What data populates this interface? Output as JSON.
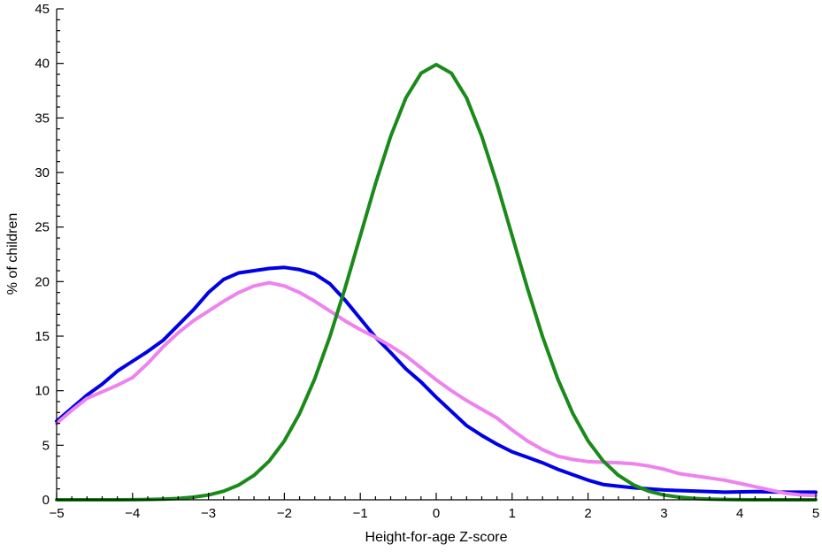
{
  "chart_data": {
    "type": "line",
    "title": "",
    "xlabel": "Height-for-age Z-score",
    "ylabel": "% of children",
    "xlim": [
      -5,
      5
    ],
    "ylim": [
      0,
      45
    ],
    "x_ticks": [
      -5,
      -4,
      -3,
      -2,
      -1,
      0,
      1,
      2,
      3,
      4,
      5
    ],
    "y_ticks": [
      0,
      5,
      10,
      15,
      20,
      25,
      30,
      35,
      40,
      45
    ],
    "x_tick_labels": [
      "−5",
      "−4",
      "−3",
      "−2",
      "−1",
      "0",
      "1",
      "2",
      "3",
      "4",
      "5"
    ],
    "y_tick_labels": [
      "0",
      "5",
      "10",
      "15",
      "20",
      "25",
      "30",
      "35",
      "40",
      "45"
    ],
    "grid": false,
    "legend": "none",
    "series": [
      {
        "color": "#0000e6",
        "points": [
          [
            -5,
            7.2
          ],
          [
            -4.8,
            8.4
          ],
          [
            -4.6,
            9.6
          ],
          [
            -4.4,
            10.6
          ],
          [
            -4.2,
            11.8
          ],
          [
            -4,
            12.7
          ],
          [
            -3.8,
            13.6
          ],
          [
            -3.6,
            14.6
          ],
          [
            -3.4,
            16.0
          ],
          [
            -3.2,
            17.4
          ],
          [
            -3,
            19.0
          ],
          [
            -2.8,
            20.2
          ],
          [
            -2.6,
            20.8
          ],
          [
            -2.4,
            21.0
          ],
          [
            -2.2,
            21.2
          ],
          [
            -2,
            21.3
          ],
          [
            -1.8,
            21.1
          ],
          [
            -1.6,
            20.7
          ],
          [
            -1.4,
            19.8
          ],
          [
            -1.2,
            18.3
          ],
          [
            -1,
            16.6
          ],
          [
            -0.8,
            14.9
          ],
          [
            -0.6,
            13.5
          ],
          [
            -0.4,
            12.0
          ],
          [
            -0.2,
            10.8
          ],
          [
            0,
            9.4
          ],
          [
            0.2,
            8.1
          ],
          [
            0.4,
            6.8
          ],
          [
            0.6,
            5.9
          ],
          [
            0.8,
            5.1
          ],
          [
            1,
            4.4
          ],
          [
            1.2,
            3.9
          ],
          [
            1.4,
            3.4
          ],
          [
            1.6,
            2.8
          ],
          [
            1.8,
            2.3
          ],
          [
            2,
            1.8
          ],
          [
            2.2,
            1.4
          ],
          [
            2.4,
            1.25
          ],
          [
            2.6,
            1.1
          ],
          [
            2.8,
            1.0
          ],
          [
            3,
            0.9
          ],
          [
            3.4,
            0.8
          ],
          [
            3.8,
            0.7
          ],
          [
            4.2,
            0.75
          ],
          [
            4.6,
            0.7
          ],
          [
            5,
            0.7
          ]
        ]
      },
      {
        "color": "#ee82ee",
        "points": [
          [
            -5,
            7.0
          ],
          [
            -4.8,
            8.2
          ],
          [
            -4.6,
            9.3
          ],
          [
            -4.4,
            9.9
          ],
          [
            -4.2,
            10.5
          ],
          [
            -4,
            11.2
          ],
          [
            -3.8,
            12.5
          ],
          [
            -3.6,
            14.0
          ],
          [
            -3.4,
            15.3
          ],
          [
            -3.2,
            16.4
          ],
          [
            -3,
            17.3
          ],
          [
            -2.8,
            18.2
          ],
          [
            -2.6,
            19.0
          ],
          [
            -2.4,
            19.6
          ],
          [
            -2.2,
            19.9
          ],
          [
            -2,
            19.6
          ],
          [
            -1.8,
            19.0
          ],
          [
            -1.6,
            18.2
          ],
          [
            -1.4,
            17.3
          ],
          [
            -1.2,
            16.4
          ],
          [
            -1,
            15.6
          ],
          [
            -0.8,
            14.9
          ],
          [
            -0.6,
            14.1
          ],
          [
            -0.4,
            13.2
          ],
          [
            -0.2,
            12.1
          ],
          [
            0,
            11.0
          ],
          [
            0.2,
            10.0
          ],
          [
            0.4,
            9.1
          ],
          [
            0.6,
            8.3
          ],
          [
            0.8,
            7.5
          ],
          [
            1,
            6.4
          ],
          [
            1.2,
            5.4
          ],
          [
            1.4,
            4.6
          ],
          [
            1.6,
            4.0
          ],
          [
            1.8,
            3.7
          ],
          [
            2,
            3.5
          ],
          [
            2.2,
            3.45
          ],
          [
            2.4,
            3.4
          ],
          [
            2.6,
            3.3
          ],
          [
            2.8,
            3.1
          ],
          [
            3,
            2.8
          ],
          [
            3.2,
            2.4
          ],
          [
            3.4,
            2.2
          ],
          [
            3.6,
            2.0
          ],
          [
            3.8,
            1.8
          ],
          [
            4,
            1.5
          ],
          [
            4.2,
            1.2
          ],
          [
            4.4,
            0.9
          ],
          [
            4.6,
            0.6
          ],
          [
            4.8,
            0.45
          ],
          [
            5,
            0.4
          ]
        ]
      },
      {
        "color": "#1a8a1a",
        "points": [
          [
            -5,
            0.0
          ],
          [
            -4.8,
            0.0
          ],
          [
            -4.6,
            0.0
          ],
          [
            -4.4,
            0.0
          ],
          [
            -4.2,
            0.0
          ],
          [
            -4,
            0.01
          ],
          [
            -3.8,
            0.03
          ],
          [
            -3.6,
            0.06
          ],
          [
            -3.4,
            0.12
          ],
          [
            -3.2,
            0.24
          ],
          [
            -3,
            0.44
          ],
          [
            -2.8,
            0.79
          ],
          [
            -2.6,
            1.36
          ],
          [
            -2.4,
            2.24
          ],
          [
            -2.2,
            3.55
          ],
          [
            -2,
            5.4
          ],
          [
            -1.8,
            7.9
          ],
          [
            -1.6,
            11.09
          ],
          [
            -1.4,
            14.97
          ],
          [
            -1.2,
            19.42
          ],
          [
            -1,
            24.2
          ],
          [
            -0.8,
            28.97
          ],
          [
            -0.6,
            33.32
          ],
          [
            -0.4,
            36.83
          ],
          [
            -0.2,
            39.1
          ],
          [
            0,
            39.89
          ],
          [
            0.2,
            39.1
          ],
          [
            0.4,
            36.83
          ],
          [
            0.6,
            33.32
          ],
          [
            0.8,
            28.97
          ],
          [
            1,
            24.2
          ],
          [
            1.2,
            19.42
          ],
          [
            1.4,
            14.97
          ],
          [
            1.6,
            11.09
          ],
          [
            1.8,
            7.9
          ],
          [
            2,
            5.4
          ],
          [
            2.2,
            3.55
          ],
          [
            2.4,
            2.24
          ],
          [
            2.6,
            1.36
          ],
          [
            2.8,
            0.79
          ],
          [
            3,
            0.44
          ],
          [
            3.2,
            0.24
          ],
          [
            3.4,
            0.12
          ],
          [
            3.6,
            0.06
          ],
          [
            3.8,
            0.03
          ],
          [
            4,
            0.01
          ],
          [
            4.2,
            0.0
          ],
          [
            4.4,
            0.0
          ],
          [
            4.6,
            0.0
          ],
          [
            4.8,
            0.0
          ],
          [
            5,
            0.0
          ]
        ]
      }
    ]
  }
}
